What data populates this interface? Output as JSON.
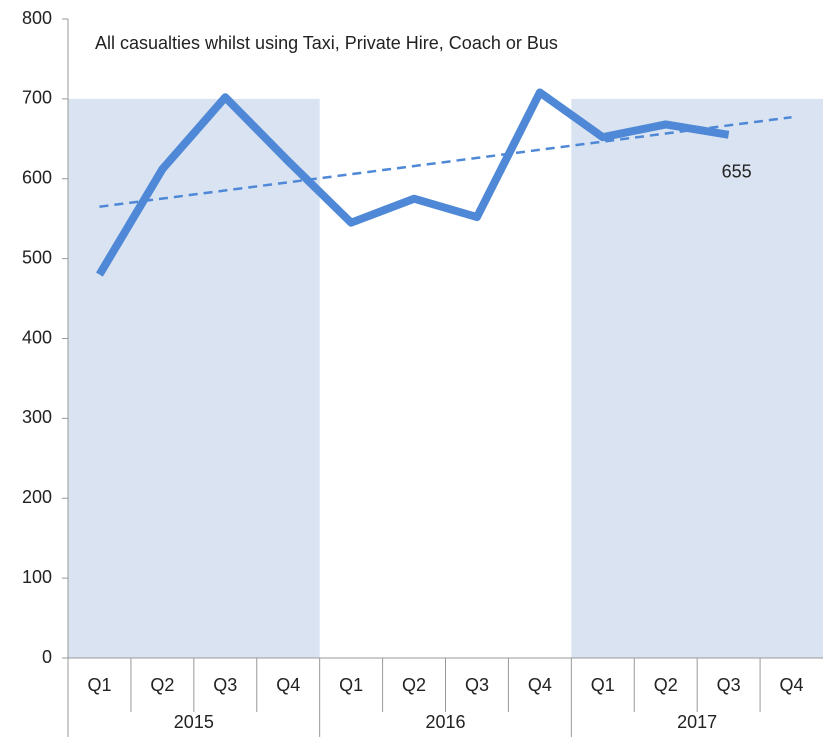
{
  "chart_data": {
    "type": "line",
    "title": "All casualties whilst using Taxi, Private Hire, Coach or Bus",
    "categories": [
      "Q1",
      "Q2",
      "Q3",
      "Q4",
      "Q1",
      "Q2",
      "Q3",
      "Q4",
      "Q1",
      "Q2",
      "Q3",
      "Q4"
    ],
    "group_labels": [
      "2015",
      "2016",
      "2017"
    ],
    "values": [
      480,
      612,
      702,
      622,
      545,
      575,
      552,
      708,
      652,
      668,
      655,
      null
    ],
    "color": "#4f88d6",
    "label_index": 10,
    "trend": [
      565,
      677
    ],
    "shading": {
      "groups": [
        0,
        2
      ],
      "top": 700,
      "color": "#d9e3f1"
    },
    "ylim": [
      0,
      800
    ],
    "yticks": [
      0,
      100,
      200,
      300,
      400,
      500,
      600,
      700,
      800
    ]
  }
}
